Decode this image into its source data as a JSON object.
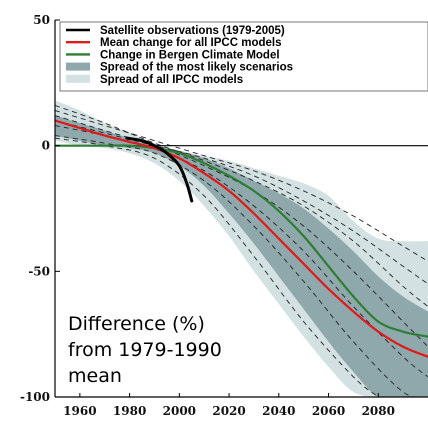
{
  "chart_data": {
    "type": "line",
    "xlim": [
      1950,
      2100
    ],
    "ylim": [
      -100,
      50
    ],
    "x_ticks": [
      {
        "value": 1960,
        "label": "1960"
      },
      {
        "value": 1980,
        "label": "1980"
      },
      {
        "value": 2000,
        "label": "2000"
      },
      {
        "value": 2020,
        "label": "2020"
      },
      {
        "value": 2040,
        "label": "2040"
      },
      {
        "value": 2060,
        "label": "2060"
      },
      {
        "value": 2080,
        "label": "2080"
      }
    ],
    "y_ticks": [
      {
        "value": 50,
        "label": "50"
      },
      {
        "value": 0,
        "label": "0"
      },
      {
        "value": -50,
        "label": "-50"
      },
      {
        "value": -100,
        "label": "-100"
      }
    ],
    "annotation_lines": [
      "Difference (%)",
      "from 1979-1990",
      "mean"
    ],
    "legend_position": "top-right",
    "legend": [
      {
        "label": "Satellite observations (1979-2005)",
        "symbol": "line",
        "color": "#000000"
      },
      {
        "label": "Mean change for all IPCC models",
        "symbol": "line",
        "color": "#e01a1a"
      },
      {
        "label": "Change in Bergen Climate Model",
        "symbol": "line",
        "color": "#2e7d32"
      },
      {
        "label": "Spread of the most likely scenarios",
        "symbol": "patch",
        "color": "#8fa8ac"
      },
      {
        "label": "Spread of all IPCC models",
        "symbol": "patch",
        "color": "#d3e1e2"
      }
    ],
    "zero_line": 0,
    "series": [
      {
        "name": "Satellite observations (1979-2005)",
        "color": "#000000",
        "x": [
          1979,
          1985,
          1990,
          1995,
          2000,
          2003,
          2005
        ],
        "y": [
          3,
          2,
          0,
          -3,
          -8,
          -15,
          -22
        ]
      },
      {
        "name": "Mean change for all IPCC models",
        "color": "#e01a1a",
        "x": [
          1950,
          1960,
          1970,
          1980,
          1990,
          2000,
          2010,
          2020,
          2030,
          2040,
          2050,
          2060,
          2070,
          2080,
          2090,
          2100
        ],
        "y": [
          10,
          7,
          4,
          1.5,
          -1,
          -5,
          -11,
          -18,
          -27,
          -37,
          -47,
          -57,
          -66,
          -74,
          -80,
          -84
        ]
      },
      {
        "name": "Change in Bergen Climate Model",
        "color": "#2e7d32",
        "x": [
          1950,
          1960,
          1970,
          1980,
          1990,
          2000,
          2010,
          2020,
          2030,
          2040,
          2050,
          2060,
          2070,
          2080,
          2090,
          2100
        ],
        "y": [
          0,
          0,
          0,
          0,
          -1,
          -3,
          -7,
          -12,
          -18,
          -26,
          -36,
          -48,
          -60,
          -70,
          -74,
          -76
        ]
      }
    ],
    "bands": [
      {
        "name": "Spread of all IPCC models",
        "color": "#d3e1e2",
        "x": [
          1950,
          1960,
          1970,
          1980,
          1990,
          2000,
          2010,
          2020,
          2030,
          2040,
          2050,
          2060,
          2070,
          2080,
          2090,
          2100
        ],
        "upper": [
          18,
          14,
          9,
          5,
          1,
          -2,
          -4,
          -6,
          -9,
          -12,
          -15,
          -20,
          -30,
          -37,
          -38,
          -38
        ],
        "lower": [
          2,
          0,
          -1,
          -3,
          -7,
          -14,
          -24,
          -36,
          -50,
          -63,
          -76,
          -88,
          -98,
          -100,
          -100,
          -100
        ]
      },
      {
        "name": "Spread of the most likely scenarios",
        "color": "#8fa8ac",
        "x": [
          1950,
          1960,
          1970,
          1980,
          1990,
          2000,
          2010,
          2020,
          2030,
          2040,
          2050,
          2060,
          2070,
          2080,
          2090,
          2100
        ],
        "upper": [
          12,
          9,
          6,
          3,
          0,
          -2,
          -5,
          -9,
          -14,
          -19,
          -25,
          -33,
          -42,
          -52,
          -60,
          -66
        ],
        "lower": [
          4,
          2,
          0,
          -1,
          -3,
          -8,
          -16,
          -27,
          -39,
          -52,
          -65,
          -78,
          -90,
          -100,
          -100,
          -100
        ]
      }
    ],
    "dashed_members": [
      {
        "x": [
          1950,
          1970,
          1990,
          2010,
          2030,
          2050,
          2070,
          2090,
          2100
        ],
        "y": [
          16,
          9,
          1,
          -6,
          -14,
          -24,
          -38,
          -56,
          -64
        ]
      },
      {
        "x": [
          1950,
          1970,
          1990,
          2010,
          2030,
          2050,
          2070,
          2090,
          2100
        ],
        "y": [
          12,
          6,
          0,
          -8,
          -18,
          -32,
          -50,
          -70,
          -80
        ]
      },
      {
        "x": [
          1950,
          1970,
          1990,
          2010,
          2030,
          2050,
          2070,
          2090,
          2100
        ],
        "y": [
          8,
          4,
          -1,
          -10,
          -24,
          -42,
          -64,
          -84,
          -92
        ]
      },
      {
        "x": [
          1950,
          1970,
          1990,
          2010,
          2030,
          2050,
          2070,
          2090,
          2100
        ],
        "y": [
          4,
          1,
          -3,
          -14,
          -32,
          -54,
          -78,
          -98,
          -100
        ]
      },
      {
        "x": [
          1950,
          1970,
          1990,
          2010,
          2030,
          2050,
          2070,
          2080
        ],
        "y": [
          3,
          0,
          -5,
          -20,
          -44,
          -70,
          -92,
          -100
        ]
      },
      {
        "x": [
          1950,
          1970,
          1990,
          2010,
          2030,
          2050,
          2070,
          2090,
          2100
        ],
        "y": [
          14,
          8,
          2,
          -4,
          -10,
          -18,
          -28,
          -40,
          -46
        ]
      },
      {
        "x": [
          1950,
          1970,
          1990,
          2010,
          2030,
          2050,
          2070,
          2090,
          2100
        ],
        "y": [
          10,
          5,
          0,
          -5,
          -12,
          -22,
          -34,
          -48,
          -55
        ]
      }
    ]
  }
}
